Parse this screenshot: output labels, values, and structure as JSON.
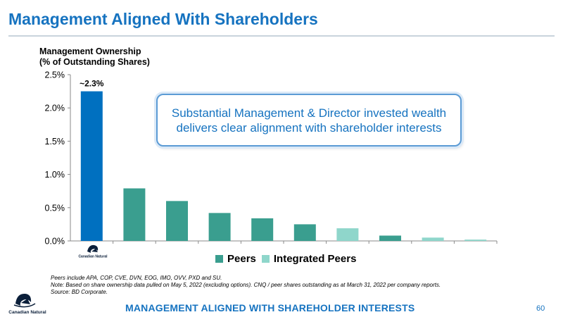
{
  "slide": {
    "title": "Management Aligned With Shareholders",
    "callout": {
      "line1": "Substantial Management & Director invested wealth",
      "line2": "delivers clear alignment with shareholder interests"
    },
    "footnotes": [
      "Peers include APA, COP, CVE, DVN, EOG, IMO, OVV, PXD and SU.",
      "Note: Based on share ownership data pulled on May 5, 2022 (excluding options). CNQ / peer shares outstanding as at March 31, 2022 per company reports.",
      "Source: BD Corporate."
    ],
    "footer_banner": "MANAGEMENT ALIGNED WITH SHAREHOLDER INTERESTS",
    "page_number": "60",
    "logo_text": "Canadian Natural"
  },
  "colors": {
    "title": "#1673c0",
    "cnq_bar": "#0070c0",
    "peers": "#3a9e8f",
    "integrated_peers": "#8fd6cb"
  },
  "chart_data": {
    "type": "bar",
    "ylabel_line1": "Management Ownership",
    "ylabel_line2": "(% of Outstanding Shares)",
    "ylim": [
      0,
      2.5
    ],
    "yticks": [
      "0.0%",
      "0.5%",
      "1.0%",
      "1.5%",
      "2.0%",
      "2.5%"
    ],
    "ytick_values": [
      0,
      0.5,
      1.0,
      1.5,
      2.0,
      2.5
    ],
    "grid": false,
    "legend_position": "bottom-center",
    "data_label": "~2.3%",
    "bars": [
      {
        "value": 2.25,
        "group": "cnq"
      },
      {
        "value": 0.79,
        "group": "peers"
      },
      {
        "value": 0.6,
        "group": "peers"
      },
      {
        "value": 0.42,
        "group": "peers"
      },
      {
        "value": 0.34,
        "group": "peers"
      },
      {
        "value": 0.25,
        "group": "peers"
      },
      {
        "value": 0.19,
        "group": "integrated_peers"
      },
      {
        "value": 0.08,
        "group": "peers"
      },
      {
        "value": 0.05,
        "group": "integrated_peers"
      },
      {
        "value": 0.02,
        "group": "integrated_peers"
      }
    ],
    "legend": [
      {
        "label": "Peers",
        "group": "peers"
      },
      {
        "label": "Integrated Peers",
        "group": "integrated_peers"
      }
    ]
  }
}
